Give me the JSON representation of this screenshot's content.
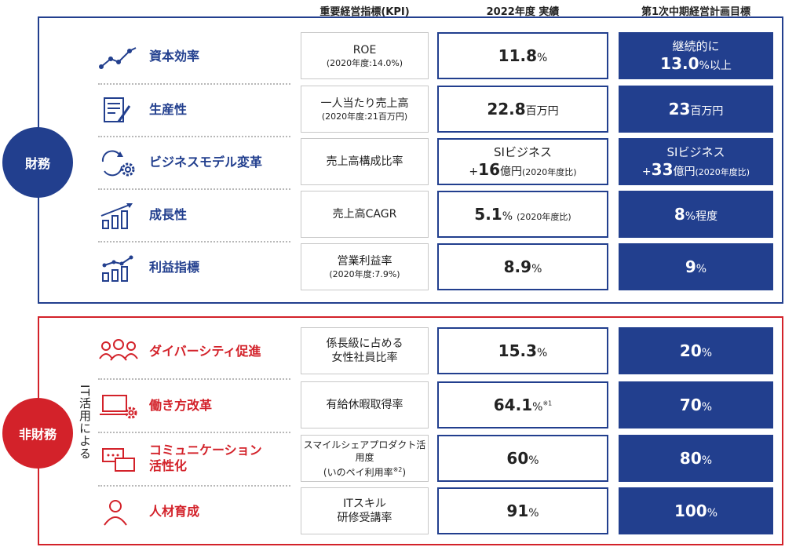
{
  "headers": {
    "kpi": "重要経営指標(KPI)",
    "result": "2022年度 実績",
    "target": "第1次中期経営計画目標"
  },
  "categories": {
    "financial": "財務",
    "non_financial": "非財務",
    "it_note": "IT活用による"
  },
  "colors": {
    "navy": "#223f8e",
    "red": "#d3222a"
  },
  "financial_rows": [
    {
      "icon": "line-chart-icon",
      "label": "資本効率",
      "kpi": "ROE",
      "kpi_sub": "(2020年度:14.0%)",
      "result": {
        "value": "11.8",
        "unit": "%"
      },
      "target": {
        "pre": "継続的に",
        "value": "13.0",
        "unit": "%以上"
      }
    },
    {
      "icon": "document-pen-icon",
      "label": "生産性",
      "kpi": "一人当たり売上高",
      "kpi_sub": "(2020年度:21百万円)",
      "result": {
        "value": "22.8",
        "unit": "百万円"
      },
      "target": {
        "value": "23",
        "unit": "百万円"
      }
    },
    {
      "icon": "cycle-gear-icon",
      "label": "ビジネスモデル変革",
      "kpi": "売上高構成比率",
      "result": {
        "pre": "SIビジネス",
        "sign": "+",
        "value": "16",
        "unit": "億円",
        "note": "(2020年度比)"
      },
      "target": {
        "pre": "SIビジネス",
        "sign": "+",
        "value": "33",
        "unit": "億円",
        "note": "(2020年度比)"
      }
    },
    {
      "icon": "growth-bars-icon",
      "label": "成長性",
      "kpi": "売上高CAGR",
      "result": {
        "value": "5.1",
        "unit": "%",
        "note": "(2020年度比)"
      },
      "target": {
        "value": "8",
        "unit": "%程度"
      }
    },
    {
      "icon": "profit-bars-icon",
      "label": "利益指標",
      "kpi": "営業利益率",
      "kpi_sub": "(2020年度:7.9%)",
      "result": {
        "value": "8.9",
        "unit": "%"
      },
      "target": {
        "value": "9",
        "unit": "%"
      }
    }
  ],
  "non_financial_rows": [
    {
      "icon": "people-group-icon",
      "label": "ダイバーシティ促進",
      "kpi_line1": "係長級に占める",
      "kpi_line2": "女性社員比率",
      "result": {
        "value": "15.3",
        "unit": "%"
      },
      "target": {
        "value": "20",
        "unit": "%"
      }
    },
    {
      "icon": "laptop-gear-icon",
      "label": "働き方改革",
      "kpi": "有給休暇取得率",
      "result": {
        "value": "64.1",
        "unit": "%",
        "mark": "※1"
      },
      "target": {
        "value": "70",
        "unit": "%"
      }
    },
    {
      "icon": "chat-bubbles-icon",
      "label_line1": "コミュニケーション",
      "label_line2": "活性化",
      "kpi_line1": "スマイルシェアプロダクト活用度",
      "kpi_line2": "(いのペイ利用率",
      "kpi_mark": "※2",
      "kpi_close": ")",
      "result": {
        "value": "60",
        "unit": "%"
      },
      "target": {
        "value": "80",
        "unit": "%"
      }
    },
    {
      "icon": "person-icon",
      "label": "人材育成",
      "kpi_line1": "ITスキル",
      "kpi_line2": "研修受講率",
      "result": {
        "value": "91",
        "unit": "%"
      },
      "target": {
        "value": "100",
        "unit": "%"
      }
    }
  ]
}
